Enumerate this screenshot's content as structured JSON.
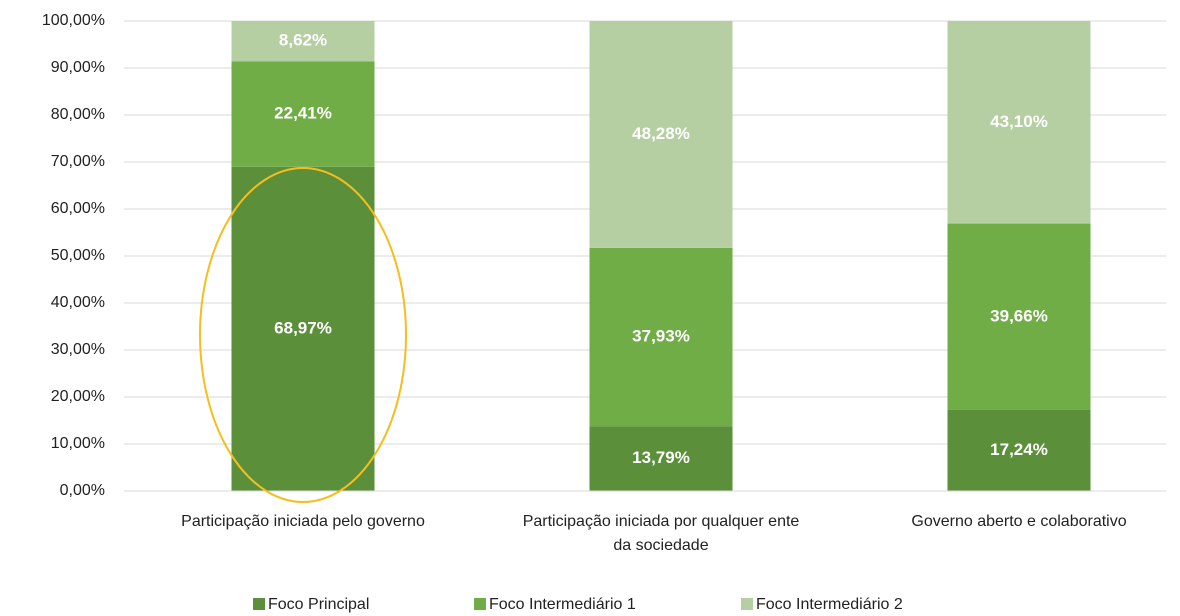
{
  "chart_data": {
    "type": "stacked_bar",
    "categories": [
      "Participação iniciada pelo governo",
      "Participação iniciada por qualquer ente da sociedade",
      "Governo aberto e colaborativo"
    ],
    "series": [
      {
        "name": "Foco Principal",
        "color": "#5b8f3a",
        "values": [
          68.97,
          13.79,
          17.24
        ],
        "value_labels": [
          "68,97%",
          "13,79%",
          "17,24%"
        ]
      },
      {
        "name": "Foco Intermediário 1",
        "color": "#70ad47",
        "values": [
          22.41,
          37.93,
          39.66
        ],
        "value_labels": [
          "22,41%",
          "37,93%",
          "39,66%"
        ]
      },
      {
        "name": "Foco Intermediário 2",
        "color": "#b5cfa3",
        "values": [
          8.62,
          48.28,
          43.1
        ],
        "value_labels": [
          "8,62%",
          "48,28%",
          "43,10%"
        ]
      }
    ],
    "ylim": [
      0,
      100
    ],
    "yticks": [
      {
        "value": 0,
        "label": "0,00%"
      },
      {
        "value": 10,
        "label": "10,00%"
      },
      {
        "value": 20,
        "label": "20,00%"
      },
      {
        "value": 30,
        "label": "30,00%"
      },
      {
        "value": 40,
        "label": "40,00%"
      },
      {
        "value": 50,
        "label": "50,00%"
      },
      {
        "value": 60,
        "label": "60,00%"
      },
      {
        "value": 70,
        "label": "70,00%"
      },
      {
        "value": 80,
        "label": "80,00%"
      },
      {
        "value": 90,
        "label": "90,00%"
      },
      {
        "value": 100,
        "label": "100,00%"
      }
    ],
    "grid": true,
    "legend": "bottom"
  }
}
